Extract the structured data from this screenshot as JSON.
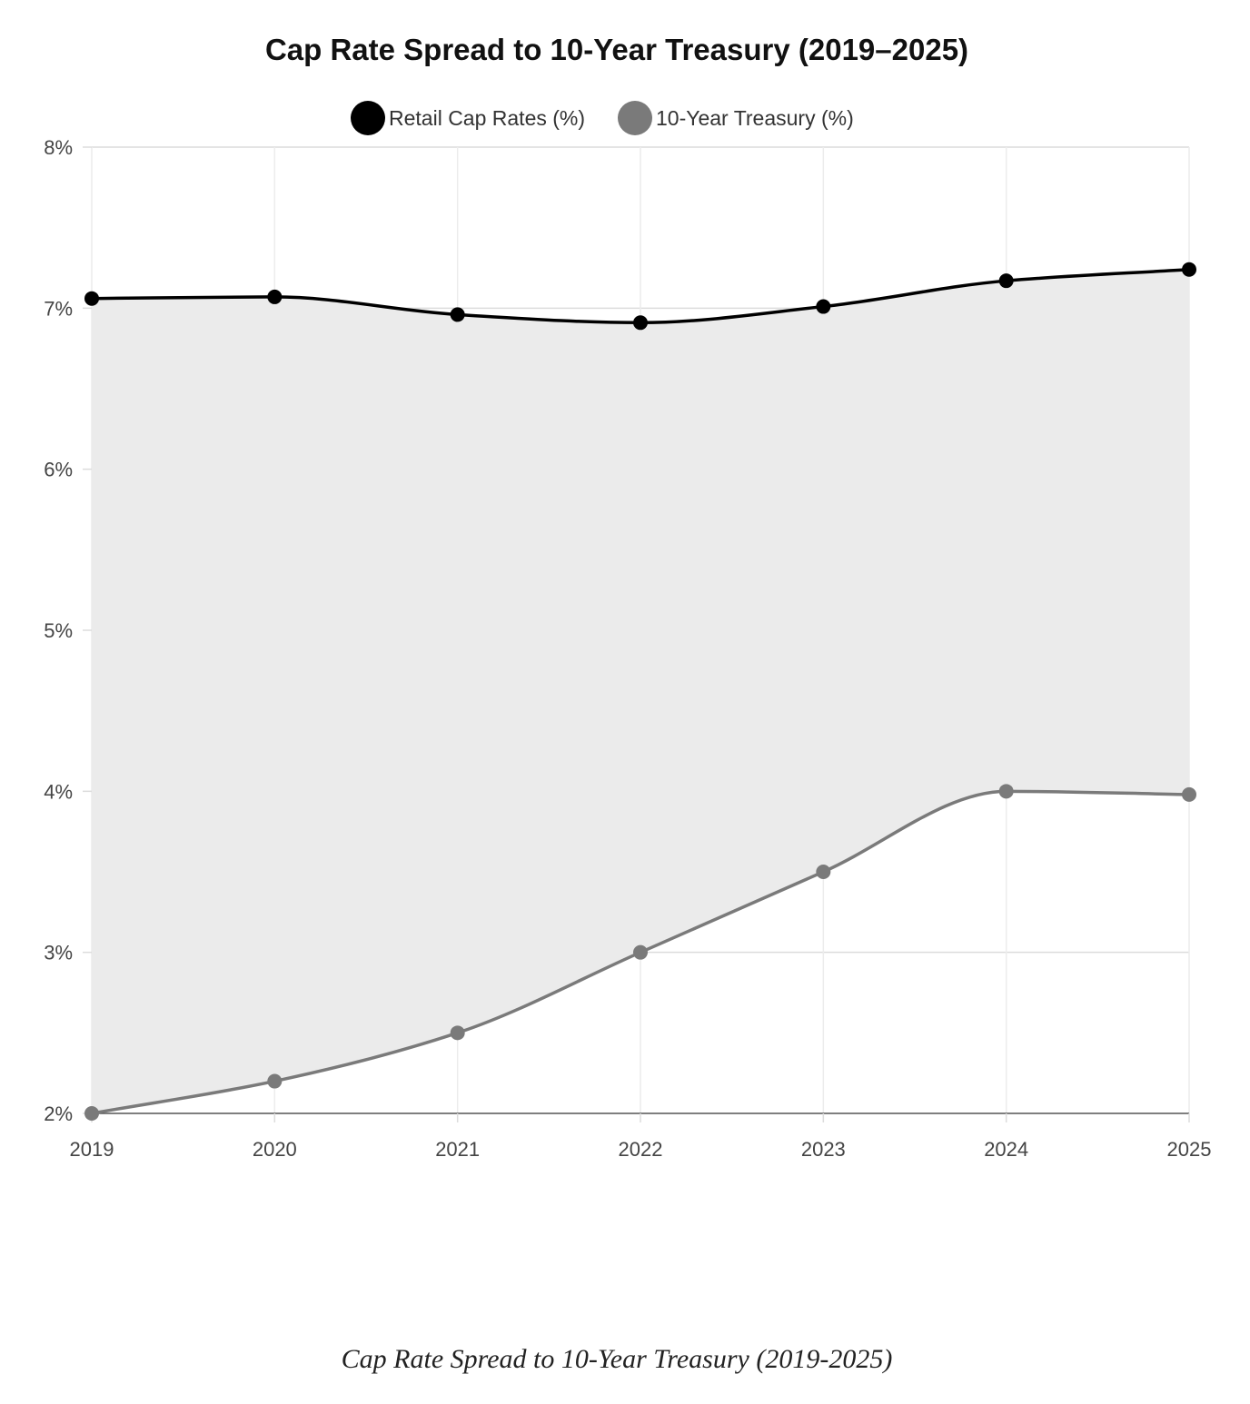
{
  "chart_data": {
    "type": "line",
    "title": "Cap Rate Spread to 10-Year Treasury (2019–2025)",
    "caption": "Cap Rate Spread to 10-Year Treasury (2019-2025)",
    "x": [
      "2019",
      "2020",
      "2021",
      "2022",
      "2023",
      "2024",
      "2025"
    ],
    "y_ticks": [
      "2%",
      "3%",
      "4%",
      "5%",
      "6%",
      "7%",
      "8%"
    ],
    "ylim": [
      2,
      8
    ],
    "grid": true,
    "legend_position": "top-center",
    "fill_between_series": true,
    "fill_color": "#ebebeb",
    "series": [
      {
        "name": "Retail Cap Rates (%)",
        "color": "#000000",
        "values": [
          7.06,
          7.07,
          6.96,
          6.91,
          7.01,
          7.17,
          7.24
        ]
      },
      {
        "name": "10-Year Treasury (%)",
        "color": "#7a7a7a",
        "values": [
          2.0,
          2.2,
          2.5,
          3.0,
          3.5,
          4.0,
          3.98
        ]
      }
    ]
  }
}
